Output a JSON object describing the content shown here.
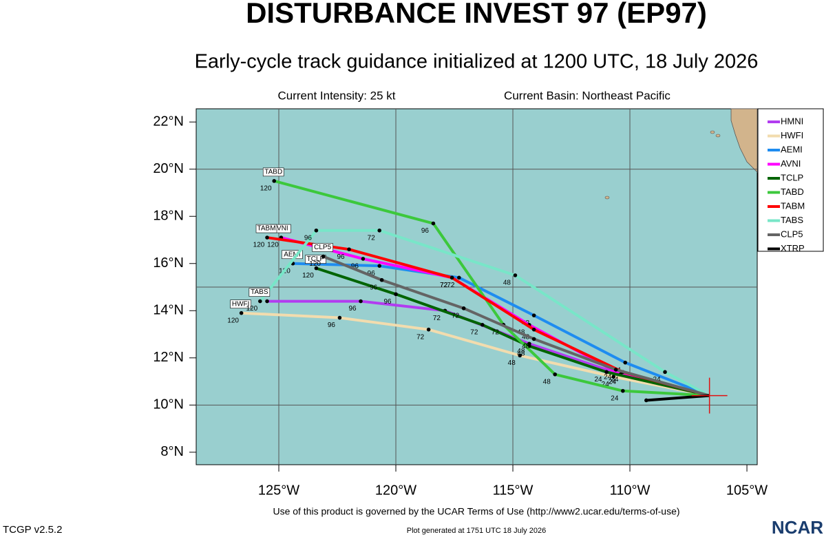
{
  "chart_data": {
    "type": "line",
    "title": "DISTURBANCE INVEST 97 (EP97)",
    "subtitle": "Early-cycle track guidance initialized at 1200 UTC, 18 July 2026",
    "intensity": "Current Intensity: 25 kt",
    "basin": "Current Basin: Northeast Pacific",
    "terms": "Use of this product is governed by the UCAR Terms of Use (http://www2.ucar.edu/terms-of-use)",
    "version": "TCGP v2.5.2",
    "generated": "Plot generated at 1751 UTC   18 July 2026",
    "logo": "NCAR",
    "xlim": [
      -128.53,
      -104.56
    ],
    "ylim": [
      7.47,
      22.56
    ],
    "xticks": [
      {
        "value": -125,
        "label": "125°W"
      },
      {
        "value": -120,
        "label": "120°W"
      },
      {
        "value": -115,
        "label": "115°W"
      },
      {
        "value": -110,
        "label": "110°W"
      },
      {
        "value": -105,
        "label": "105°W"
      }
    ],
    "yticks": [
      {
        "value": 8,
        "label": "8°N"
      },
      {
        "value": 10,
        "label": "10°N"
      },
      {
        "value": 12,
        "label": "12°N"
      },
      {
        "value": 14,
        "label": "14°N"
      },
      {
        "value": 16,
        "label": "16°N"
      },
      {
        "value": 18,
        "label": "18°N"
      },
      {
        "value": 20,
        "label": "20°N"
      },
      {
        "value": 22,
        "label": "22°N"
      }
    ],
    "ygrid": [
      10,
      15,
      20
    ],
    "legend": "upper right",
    "series": [
      {
        "name": "HMNI",
        "color": "#b23cf0",
        "x": [
          -106.6,
          -110.4,
          -114.3,
          -117.9,
          -121.5,
          -125.5
        ],
        "values": [
          10.4,
          11.3,
          12.6,
          14.0,
          14.4,
          14.4
        ],
        "labels": [
          null,
          "24",
          "48",
          "72",
          "96",
          null
        ]
      },
      {
        "name": "HWFI",
        "color": "#f2dcae",
        "x": [
          -106.6,
          -110.7,
          -114.7,
          -118.6,
          -122.4,
          -126.6
        ],
        "values": [
          10.4,
          11.2,
          12.1,
          13.2,
          13.7,
          13.9
        ],
        "labels": [
          null,
          "24",
          "48",
          "72",
          "96",
          "120"
        ]
      },
      {
        "name": "AEMI",
        "color": "#1e8cf0",
        "x": [
          -106.6,
          -110.2,
          -114.1,
          -117.3,
          -120.7,
          -124.4
        ],
        "values": [
          10.4,
          11.8,
          13.8,
          15.4,
          15.9,
          16.0
        ],
        "labels": [
          null,
          "24",
          "48",
          "72",
          "96",
          "120"
        ]
      },
      {
        "name": "AVNI",
        "color": "#ff00ff",
        "x": [
          -106.6,
          -110.4,
          -114.3,
          -117.6,
          -121.4,
          -124.9
        ],
        "values": [
          10.4,
          11.3,
          13.4,
          15.4,
          16.2,
          17.1
        ],
        "labels": [
          null,
          "24",
          "48",
          "72",
          "96",
          "120"
        ]
      },
      {
        "name": "TCLP",
        "color": "#006400",
        "x": [
          -106.6,
          -111.0,
          -114.3,
          -116.3,
          -120.0,
          -123.4
        ],
        "values": [
          10.4,
          11.4,
          12.5,
          13.4,
          14.7,
          15.8
        ],
        "labels": [
          null,
          "24",
          "48",
          "72",
          "96",
          "120"
        ]
      },
      {
        "name": "TABD",
        "color": "#3cc83c",
        "x": [
          -106.6,
          -110.3,
          -113.2,
          -115.4,
          -118.4,
          -125.2
        ],
        "values": [
          10.4,
          10.6,
          11.3,
          13.4,
          17.7,
          19.5
        ],
        "labels": [
          null,
          "24",
          "48",
          "72",
          "96",
          "120"
        ]
      },
      {
        "name": "TABM",
        "color": "#ff0000",
        "x": [
          -106.6,
          -110.3,
          -114.1,
          -117.6,
          -122.0,
          -125.5
        ],
        "values": [
          10.4,
          11.4,
          13.2,
          15.4,
          16.6,
          17.1
        ],
        "labels": [
          null,
          "24",
          "48",
          "72",
          "96",
          "120"
        ]
      },
      {
        "name": "TABS",
        "color": "#78e6c8",
        "x": [
          -106.6,
          -108.5,
          -114.9,
          -120.7,
          -123.4,
          -125.8
        ],
        "values": [
          10.4,
          11.4,
          15.5,
          17.4,
          17.4,
          14.4
        ],
        "labels": [
          null,
          "24",
          "48",
          "72",
          "96",
          "120"
        ]
      },
      {
        "name": "CLP5",
        "color": "#646464",
        "x": [
          -106.6,
          -110.6,
          -114.1,
          -117.1,
          -120.6,
          -123.1
        ],
        "values": [
          10.4,
          11.5,
          12.8,
          14.1,
          15.3,
          16.3
        ],
        "labels": [
          null,
          "24",
          "48",
          "72",
          "96",
          "120"
        ]
      },
      {
        "name": "XTRP",
        "color": "#000000",
        "x": [
          -106.6,
          -109.3
        ],
        "values": [
          10.4,
          10.2
        ],
        "labels": [
          null,
          null
        ]
      }
    ]
  }
}
